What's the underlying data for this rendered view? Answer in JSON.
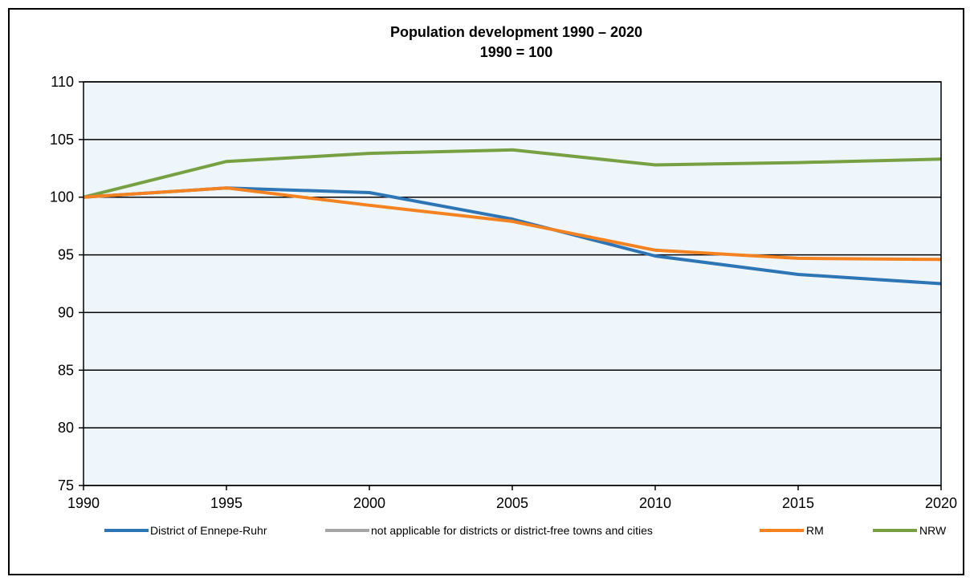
{
  "chart_data": {
    "type": "line",
    "title": "Population development  1990 – 2020",
    "subtitle": "1990 = 100",
    "xlabel": "",
    "ylabel": "",
    "x": [
      1990,
      1995,
      2000,
      2005,
      2010,
      2015,
      2020
    ],
    "ylim": [
      75,
      110
    ],
    "yticks": [
      75,
      80,
      85,
      90,
      95,
      100,
      105,
      110
    ],
    "grid": true,
    "legend_position": "bottom",
    "plot_background": "#EEF6FC",
    "series": [
      {
        "name": "District of Ennepe-Ruhr",
        "color": "#2E75B6",
        "values": [
          100,
          100.8,
          100.4,
          98.1,
          94.9,
          93.3,
          92.5
        ]
      },
      {
        "name": "not applicable for districts or district-free towns and cities",
        "color": "#A6A6A6",
        "values": [
          null,
          null,
          null,
          null,
          null,
          null,
          null
        ]
      },
      {
        "name": "RM",
        "color": "#F58220",
        "values": [
          100,
          100.8,
          99.3,
          97.9,
          95.4,
          94.7,
          94.6
        ]
      },
      {
        "name": "NRW",
        "color": "#77A043",
        "values": [
          100,
          103.1,
          103.8,
          104.1,
          102.8,
          103.0,
          103.3
        ]
      }
    ]
  }
}
